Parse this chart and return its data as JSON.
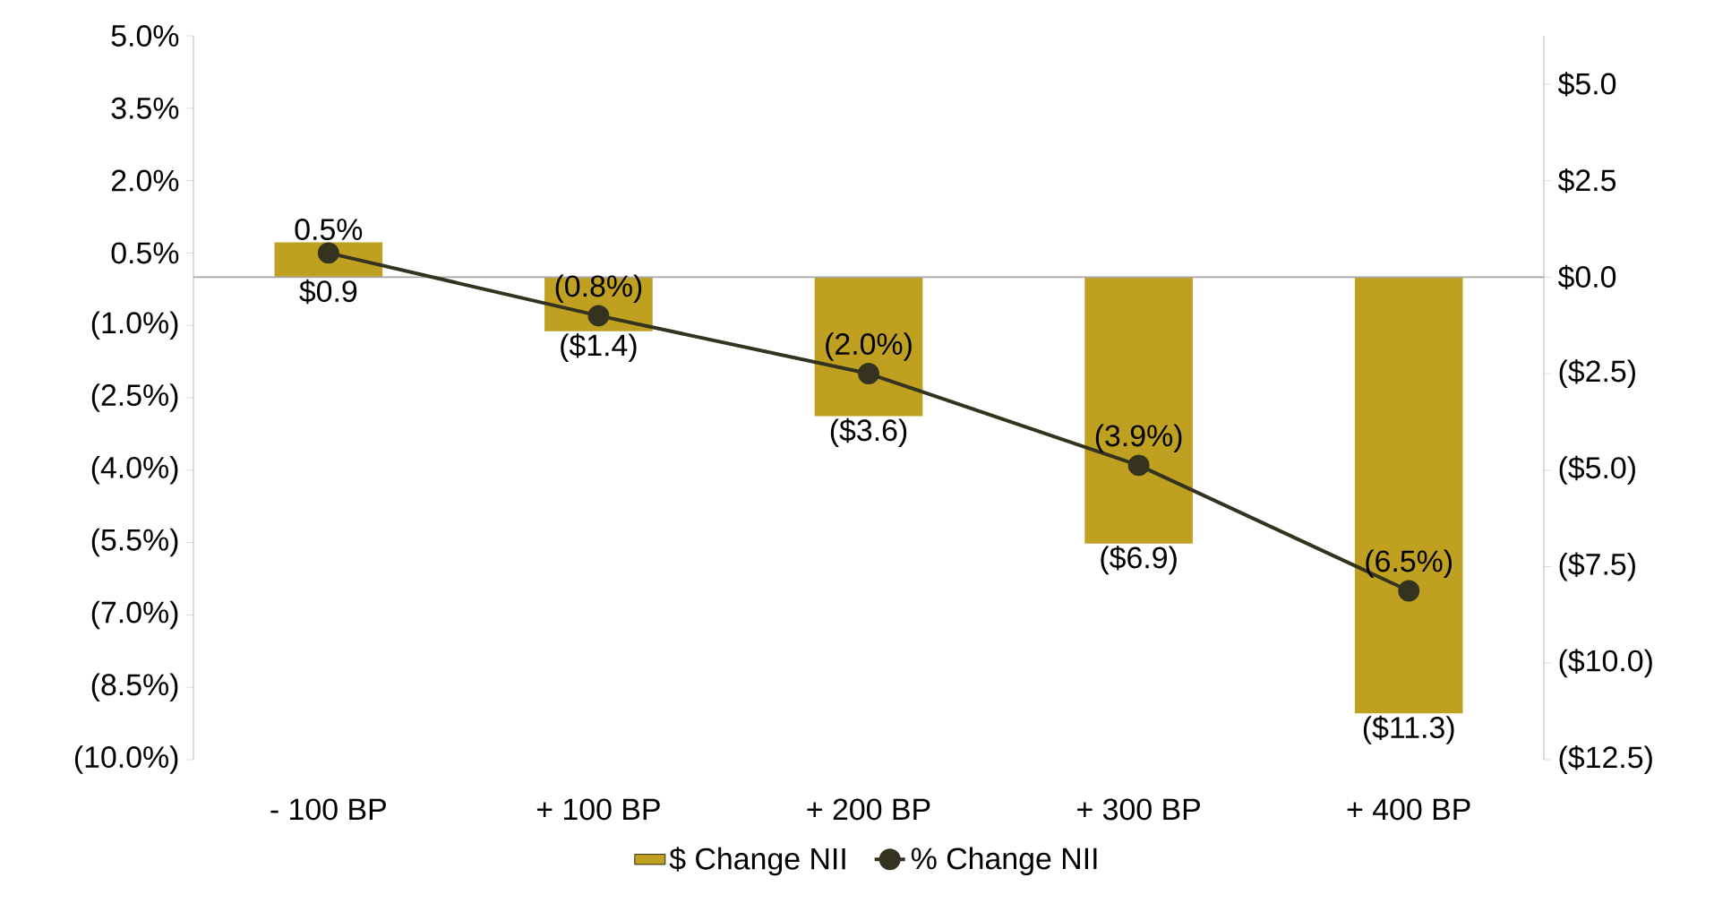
{
  "chart_data": {
    "type": "bar",
    "categories": [
      "- 100 BP",
      "+ 100 BP",
      "+ 200 BP",
      "+ 300 BP",
      "+ 400 BP"
    ],
    "series": [
      {
        "name": "$ Change NII",
        "axis": "y2",
        "color": "#c0a020",
        "values": [
          0.9,
          -1.4,
          -3.6,
          -6.9,
          -11.3
        ],
        "value_labels": [
          "$0.9",
          "($1.4)",
          "($3.6)",
          "($6.9)",
          "($11.3)"
        ]
      },
      {
        "name": "% Change NII",
        "type": "line",
        "color": "#33331f",
        "values": [
          0.5,
          -0.8,
          -2.0,
          -3.9,
          -6.5
        ],
        "value_labels": [
          "0.5%",
          "(0.8%)",
          "(2.0%)",
          "(3.9%)",
          "(6.5%)"
        ]
      }
    ],
    "marker": "circle",
    "legend": "bottom",
    "ylim": [
      -10,
      5
    ],
    "yticks": [
      {
        "value": 5,
        "label": "5.0%"
      },
      {
        "value": 3.5,
        "label": "3.5%"
      },
      {
        "value": 2,
        "label": "2.0%"
      },
      {
        "value": 0.5,
        "label": "0.5%"
      },
      {
        "value": -1,
        "label": "(1.0%)"
      },
      {
        "value": -2.5,
        "label": "(2.5%)"
      },
      {
        "value": -4,
        "label": "(4.0%)"
      },
      {
        "value": -5.5,
        "label": "(5.5%)"
      },
      {
        "value": -7,
        "label": "(7.0%)"
      },
      {
        "value": -8.5,
        "label": "(8.5%)"
      },
      {
        "value": -10,
        "label": "(10.0%)"
      }
    ],
    "y2lim": [
      -12.5,
      6.25
    ],
    "y2ticks": [
      {
        "value": 5,
        "label": "$5.0"
      },
      {
        "value": 2.5,
        "label": "$2.5"
      },
      {
        "value": 0,
        "label": "$0.0"
      },
      {
        "value": -2.5,
        "label": "($2.5)"
      },
      {
        "value": -5,
        "label": "($5.0)"
      },
      {
        "value": -7.5,
        "label": "($7.5)"
      },
      {
        "value": -10,
        "label": "($10.0)"
      },
      {
        "value": -12.5,
        "label": "($12.5)"
      }
    ]
  }
}
